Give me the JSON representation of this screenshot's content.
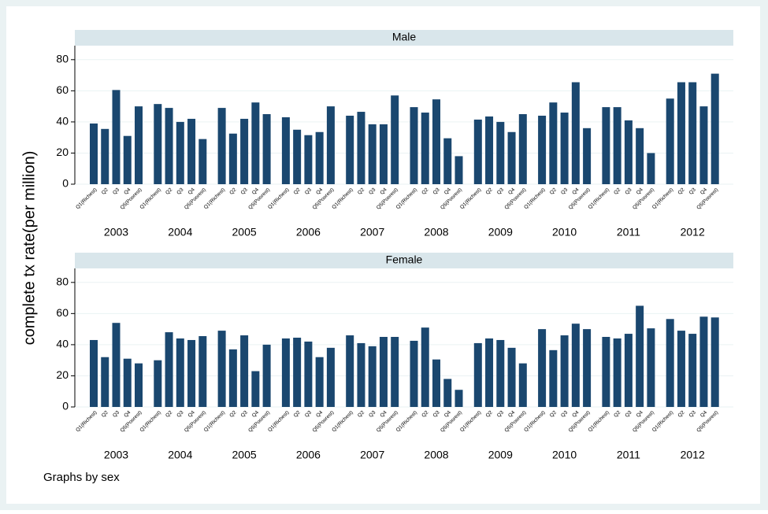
{
  "ylabel": "complete tx rate(per million)",
  "note": "Graphs by sex",
  "chart_data": [
    {
      "type": "grouped-bar",
      "title": "Male",
      "color": "#1a476f",
      "categories": [
        "Q1(Richest)",
        "Q2",
        "Q3",
        "Q4",
        "Q5(Poorest)"
      ],
      "groups": [
        "2003",
        "2004",
        "2005",
        "2006",
        "2007",
        "2008",
        "2009",
        "2010",
        "2011",
        "2012"
      ],
      "values": [
        [
          39,
          35.5,
          60.5,
          31,
          50
        ],
        [
          51.5,
          49,
          40,
          42,
          29
        ],
        [
          49,
          32.5,
          42,
          52.5,
          45
        ],
        [
          43,
          35,
          31.5,
          33.5,
          50
        ],
        [
          44,
          46.5,
          38.5,
          38.5,
          57
        ],
        [
          49.5,
          46,
          54.5,
          29.5,
          18
        ],
        [
          41.5,
          43.5,
          40,
          33.5,
          45
        ],
        [
          44,
          52.5,
          46,
          65.5,
          36
        ],
        [
          49.5,
          49.5,
          41,
          36,
          20
        ],
        [
          55,
          65.5,
          65.5,
          50,
          71
        ]
      ],
      "ylim": [
        0,
        89
      ],
      "yticks": [
        0,
        20,
        40,
        60,
        80
      ],
      "grid": true
    },
    {
      "type": "grouped-bar",
      "title": "Female",
      "color": "#1a476f",
      "categories": [
        "Q1(Richest)",
        "Q2",
        "Q3",
        "Q4",
        "Q5(Poorest)"
      ],
      "groups": [
        "2003",
        "2004",
        "2005",
        "2006",
        "2007",
        "2008",
        "2009",
        "2010",
        "2011",
        "2012"
      ],
      "values": [
        [
          43,
          32,
          54,
          31,
          28
        ],
        [
          30,
          48,
          44,
          43,
          45.5
        ],
        [
          49,
          37,
          46,
          23,
          40
        ],
        [
          44,
          44.5,
          42,
          32,
          38
        ],
        [
          46,
          41,
          39,
          45,
          45
        ],
        [
          42.5,
          51,
          30.5,
          18,
          11
        ],
        [
          41,
          44,
          43,
          38,
          28
        ],
        [
          50,
          36.5,
          46,
          53.5,
          50
        ],
        [
          45,
          44,
          47,
          65,
          50.5
        ],
        [
          56.5,
          49,
          47,
          58,
          57.5
        ]
      ],
      "ylim": [
        0,
        89
      ],
      "yticks": [
        0,
        20,
        40,
        60,
        80
      ],
      "grid": true
    }
  ]
}
